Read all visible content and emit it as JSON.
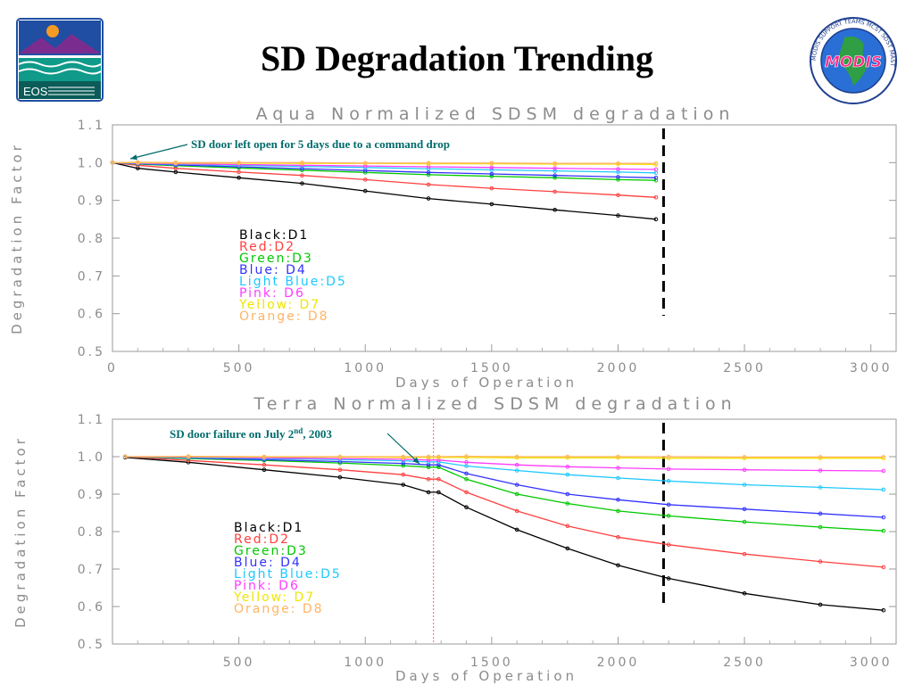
{
  "slide": {
    "title": "SD Degradation Trending",
    "eos_logo_text": "EOS",
    "modis_logo_text": "MODIS",
    "modis_ring_text": "MODIS SUPPORT TEAMS MCST SDST MAST",
    "colors": {
      "title": "#000000",
      "annotation": "#006b6b",
      "axis": "#8c8c8c",
      "eos_blue": "#1f4ea3",
      "eos_green": "#0f7a6e"
    }
  },
  "chart_data": [
    {
      "type": "line",
      "title": "Aqua Normalized SDSM degradation",
      "xlabel": "Days of Operation",
      "ylabel": "Degradation Factor",
      "xlim": [
        0,
        3100
      ],
      "ylim": [
        0.5,
        1.1
      ],
      "xticks": [
        "0",
        "500",
        "1000",
        "1500",
        "2000",
        "2500",
        "3000"
      ],
      "xtick_values": [
        0,
        500,
        1000,
        1500,
        2000,
        2500,
        3000
      ],
      "yticks": [
        "1.1",
        "1.0",
        "0.9",
        "0.8",
        "0.7",
        "0.6",
        "0.5"
      ],
      "ytick_values": [
        1.1,
        1.0,
        0.9,
        0.8,
        0.7,
        0.6,
        0.5
      ],
      "legend_position": "center-left",
      "grid": false,
      "series": [
        {
          "name": "Black:D1",
          "color": "#000000",
          "x": [
            0,
            100,
            250,
            500,
            750,
            1000,
            1250,
            1500,
            1750,
            2000,
            2150
          ],
          "y": [
            1.0,
            0.985,
            0.975,
            0.96,
            0.945,
            0.925,
            0.905,
            0.89,
            0.875,
            0.86,
            0.85
          ]
        },
        {
          "name": "Red:D2",
          "color": "#ff4040",
          "x": [
            0,
            100,
            250,
            500,
            750,
            1000,
            1250,
            1500,
            1750,
            2000,
            2150
          ],
          "y": [
            1.0,
            0.993,
            0.985,
            0.975,
            0.966,
            0.955,
            0.942,
            0.932,
            0.923,
            0.914,
            0.908
          ]
        },
        {
          "name": "Green:D3",
          "color": "#00c800",
          "x": [
            0,
            100,
            250,
            500,
            750,
            1000,
            1250,
            1500,
            1750,
            2000,
            2150
          ],
          "y": [
            1.0,
            0.996,
            0.992,
            0.986,
            0.98,
            0.974,
            0.968,
            0.964,
            0.96,
            0.955,
            0.953
          ]
        },
        {
          "name": "Blue: D4",
          "color": "#3232ff",
          "x": [
            0,
            100,
            250,
            500,
            750,
            1000,
            1250,
            1500,
            1750,
            2000,
            2150
          ],
          "y": [
            1.0,
            0.997,
            0.994,
            0.989,
            0.984,
            0.979,
            0.974,
            0.97,
            0.966,
            0.962,
            0.96
          ]
        },
        {
          "name": "Light Blue:D5",
          "color": "#1ec8ff",
          "x": [
            0,
            100,
            250,
            500,
            750,
            1000,
            1250,
            1500,
            1750,
            2000,
            2150
          ],
          "y": [
            1.0,
            0.998,
            0.996,
            0.993,
            0.99,
            0.987,
            0.984,
            0.981,
            0.978,
            0.975,
            0.973
          ]
        },
        {
          "name": "Pink: D6",
          "color": "#ff3cff",
          "x": [
            0,
            100,
            250,
            500,
            750,
            1000,
            1250,
            1500,
            1750,
            2000,
            2150
          ],
          "y": [
            1.0,
            0.999,
            0.997,
            0.995,
            0.993,
            0.991,
            0.989,
            0.987,
            0.985,
            0.983,
            0.982
          ]
        },
        {
          "name": "Yellow: D7",
          "color": "#f0e600",
          "x": [
            0,
            100,
            250,
            500,
            750,
            1000,
            1250,
            1500,
            1750,
            2000,
            2150
          ],
          "y": [
            1.0,
            1.0,
            0.999,
            0.999,
            0.998,
            0.998,
            0.997,
            0.997,
            0.996,
            0.996,
            0.995
          ]
        },
        {
          "name": "Orange: D8",
          "color": "#ffb464",
          "x": [
            0,
            100,
            250,
            500,
            750,
            1000,
            1250,
            1500,
            1750,
            2000,
            2150
          ],
          "y": [
            1.0,
            1.001,
            1.0,
            1.0,
            1.0,
            0.999,
            0.999,
            0.999,
            0.998,
            0.998,
            0.998
          ]
        }
      ],
      "annotations": [
        {
          "text": "SD door left open for 5 days due to a command drop",
          "x": 60,
          "y": 1.003
        }
      ],
      "reference_lines": [
        {
          "x": 2180,
          "style": "dashed",
          "color": "#000000"
        }
      ]
    },
    {
      "type": "line",
      "title": "Terra Normalized SDSM degradation",
      "xlabel": "Days of Operation",
      "ylabel": "Degradation Factor",
      "xlim": [
        0,
        3100
      ],
      "ylim": [
        0.5,
        1.1
      ],
      "xticks": [
        "500",
        "1000",
        "1500",
        "2000",
        "2500",
        "3000"
      ],
      "xtick_values": [
        500,
        1000,
        1500,
        2000,
        2500,
        3000
      ],
      "yticks": [
        "1.1",
        "1.0",
        "0.9",
        "0.8",
        "0.7",
        "0.6",
        "0.5"
      ],
      "ytick_values": [
        1.1,
        1.0,
        0.9,
        0.8,
        0.7,
        0.6,
        0.5
      ],
      "legend_position": "center-left",
      "grid": false,
      "series": [
        {
          "name": "Black:D1",
          "color": "#000000",
          "x": [
            50,
            300,
            600,
            900,
            1150,
            1250,
            1290,
            1400,
            1600,
            1800,
            2000,
            2200,
            2500,
            2800,
            3050
          ],
          "y": [
            0.998,
            0.985,
            0.965,
            0.945,
            0.925,
            0.905,
            0.905,
            0.865,
            0.805,
            0.755,
            0.71,
            0.675,
            0.635,
            0.605,
            0.59
          ]
        },
        {
          "name": "Red:D2",
          "color": "#ff4040",
          "x": [
            50,
            300,
            600,
            900,
            1150,
            1250,
            1290,
            1400,
            1600,
            1800,
            2000,
            2200,
            2500,
            2800,
            3050
          ],
          "y": [
            1.0,
            0.99,
            0.978,
            0.965,
            0.952,
            0.94,
            0.94,
            0.905,
            0.855,
            0.815,
            0.785,
            0.765,
            0.74,
            0.72,
            0.705
          ]
        },
        {
          "name": "Green:D3",
          "color": "#00c800",
          "x": [
            50,
            300,
            600,
            900,
            1150,
            1250,
            1290,
            1400,
            1600,
            1800,
            2000,
            2200,
            2500,
            2800,
            3050
          ],
          "y": [
            1.0,
            0.995,
            0.99,
            0.983,
            0.976,
            0.972,
            0.972,
            0.94,
            0.9,
            0.875,
            0.855,
            0.842,
            0.826,
            0.812,
            0.802
          ]
        },
        {
          "name": "Blue: D4",
          "color": "#3232ff",
          "x": [
            50,
            300,
            600,
            900,
            1150,
            1250,
            1290,
            1400,
            1600,
            1800,
            2000,
            2200,
            2500,
            2800,
            3050
          ],
          "y": [
            1.0,
            0.997,
            0.992,
            0.987,
            0.982,
            0.978,
            0.978,
            0.955,
            0.925,
            0.9,
            0.885,
            0.872,
            0.86,
            0.848,
            0.838
          ]
        },
        {
          "name": "Light Blue:D5",
          "color": "#1ec8ff",
          "x": [
            50,
            300,
            600,
            900,
            1150,
            1250,
            1290,
            1400,
            1600,
            1800,
            2000,
            2200,
            2500,
            2800,
            3050
          ],
          "y": [
            1.0,
            0.998,
            0.995,
            0.992,
            0.989,
            0.986,
            0.986,
            0.975,
            0.963,
            0.952,
            0.943,
            0.935,
            0.925,
            0.918,
            0.912
          ]
        },
        {
          "name": "Pink: D6",
          "color": "#ff3cff",
          "x": [
            50,
            300,
            600,
            900,
            1150,
            1250,
            1290,
            1400,
            1600,
            1800,
            2000,
            2200,
            2500,
            2800,
            3050
          ],
          "y": [
            1.0,
            0.999,
            0.997,
            0.995,
            0.993,
            0.991,
            0.991,
            0.985,
            0.978,
            0.973,
            0.97,
            0.967,
            0.965,
            0.963,
            0.962
          ]
        },
        {
          "name": "Yellow: D7",
          "color": "#f0e600",
          "x": [
            50,
            300,
            600,
            900,
            1150,
            1250,
            1290,
            1400,
            1600,
            1800,
            2000,
            2200,
            2500,
            2800,
            3050
          ],
          "y": [
            1.0,
            1.0,
            0.999,
            0.999,
            0.998,
            0.998,
            0.998,
            0.998,
            0.997,
            0.997,
            0.997,
            0.996,
            0.996,
            0.996,
            0.996
          ]
        },
        {
          "name": "Orange: D8",
          "color": "#ffb464",
          "x": [
            50,
            300,
            600,
            900,
            1150,
            1250,
            1290,
            1400,
            1600,
            1800,
            2000,
            2200,
            2500,
            2800,
            3050
          ],
          "y": [
            1.0,
            1.001,
            1.0,
            1.0,
            1.0,
            1.0,
            1.0,
            1.001,
            1.0,
            1.0,
            1.0,
            1.0,
            0.999,
            0.999,
            0.999
          ]
        }
      ],
      "annotations": [
        {
          "text": "SD door failure on July 2",
          "superscript": "nd",
          "suffix": ", 2003",
          "x": 1200,
          "y": 0.975
        }
      ],
      "reference_lines": [
        {
          "x": 1270,
          "style": "dotted",
          "color": "#ff6060"
        },
        {
          "x": 2180,
          "style": "dashed",
          "color": "#000000"
        }
      ]
    }
  ]
}
